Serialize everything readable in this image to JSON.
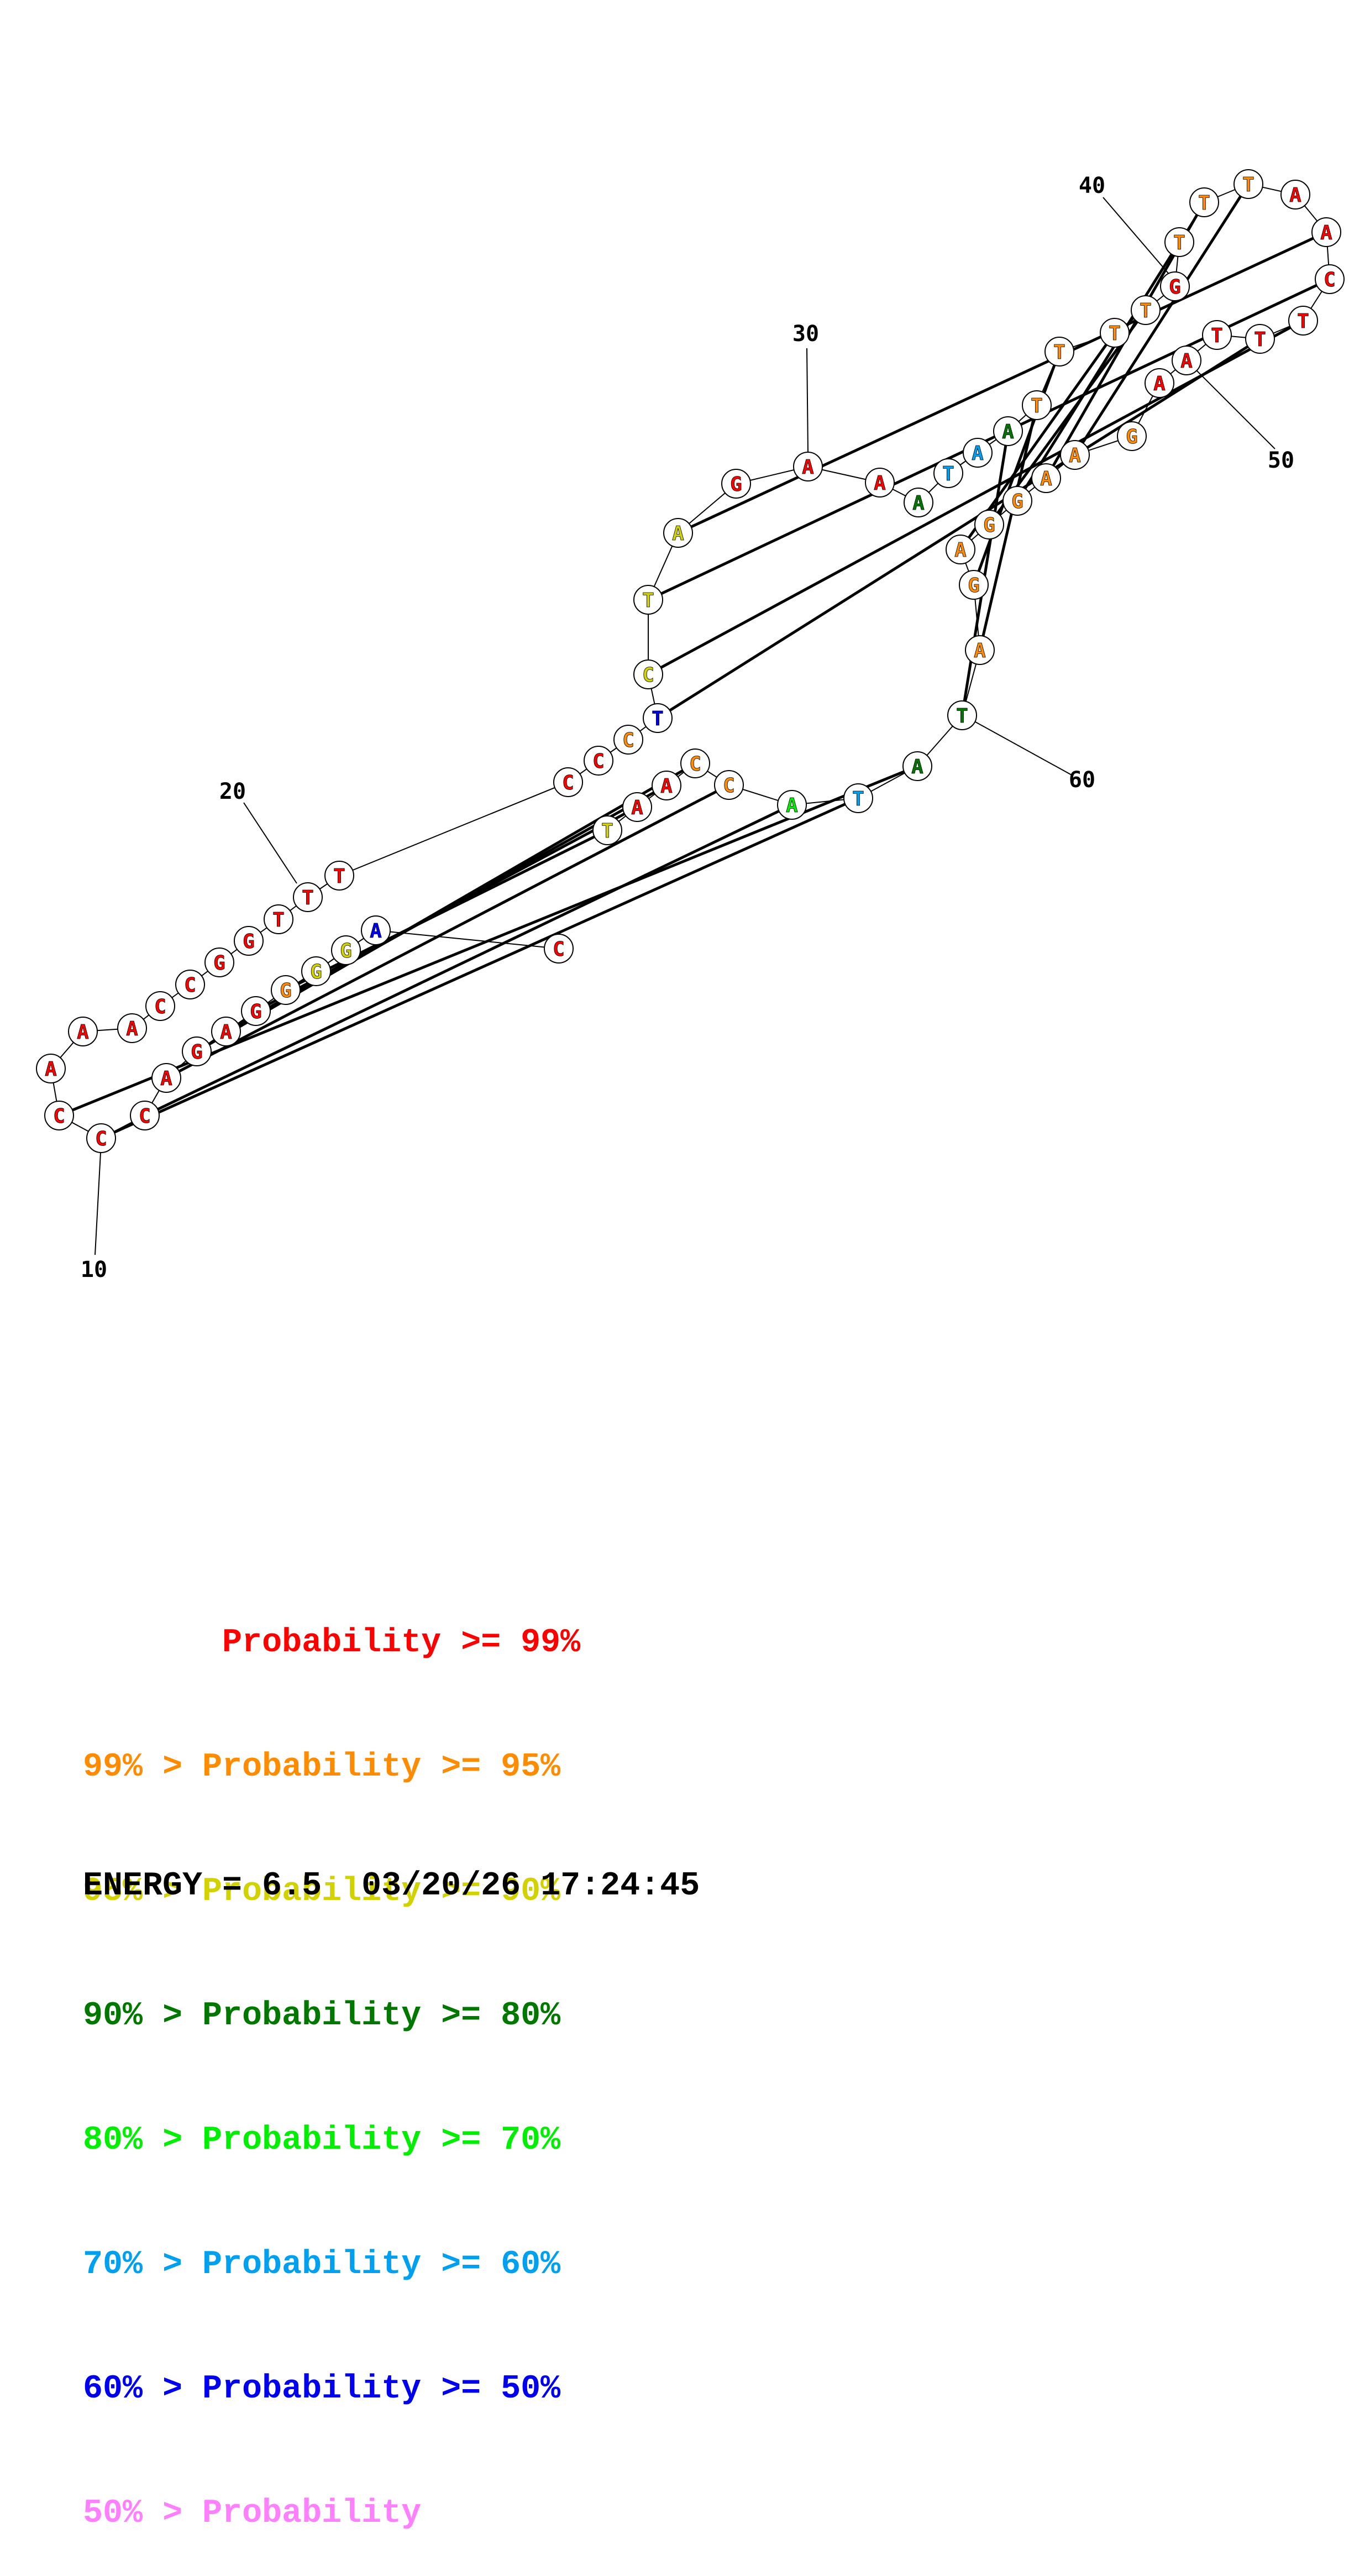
{
  "colors": {
    "red": "#ff0000",
    "orange": "#ff8c00",
    "yellow": "#d2d200",
    "dgreen": "#007800",
    "lgreen": "#00ee00",
    "cyan": "#00a0f0",
    "blue": "#0000f0",
    "pink": "#ff80ff"
  },
  "nucleotides": [
    {
      "base": "C",
      "c": "red"
    },
    {
      "base": "A",
      "c": "blue"
    },
    {
      "base": "G",
      "c": "yellow"
    },
    {
      "base": "G",
      "c": "yellow"
    },
    {
      "base": "G",
      "c": "orange"
    },
    {
      "base": "G",
      "c": "red"
    },
    {
      "base": "A",
      "c": "red"
    },
    {
      "base": "G",
      "c": "red"
    },
    {
      "base": "A",
      "c": "red"
    },
    {
      "base": "C",
      "c": "red"
    },
    {
      "base": "C",
      "c": "red"
    },
    {
      "base": "C",
      "c": "red"
    },
    {
      "base": "A",
      "c": "red"
    },
    {
      "base": "A",
      "c": "red"
    },
    {
      "base": "A",
      "c": "red"
    },
    {
      "base": "C",
      "c": "red"
    },
    {
      "base": "C",
      "c": "red"
    },
    {
      "base": "G",
      "c": "red"
    },
    {
      "base": "G",
      "c": "red"
    },
    {
      "base": "T",
      "c": "red"
    },
    {
      "base": "T",
      "c": "red"
    },
    {
      "base": "T",
      "c": "red"
    },
    {
      "base": "C",
      "c": "red"
    },
    {
      "base": "C",
      "c": "red"
    },
    {
      "base": "C",
      "c": "orange"
    },
    {
      "base": "T",
      "c": "blue"
    },
    {
      "base": "C",
      "c": "yellow"
    },
    {
      "base": "T",
      "c": "yellow"
    },
    {
      "base": "A",
      "c": "yellow"
    },
    {
      "base": "G",
      "c": "red"
    },
    {
      "base": "A",
      "c": "red"
    },
    {
      "base": "A",
      "c": "red"
    },
    {
      "base": "A",
      "c": "dgreen"
    },
    {
      "base": "T",
      "c": "cyan"
    },
    {
      "base": "A",
      "c": "cyan"
    },
    {
      "base": "A",
      "c": "dgreen"
    },
    {
      "base": "T",
      "c": "orange"
    },
    {
      "base": "T",
      "c": "orange"
    },
    {
      "base": "T",
      "c": "orange"
    },
    {
      "base": "T",
      "c": "orange"
    },
    {
      "base": "G",
      "c": "red"
    },
    {
      "base": "T",
      "c": "orange"
    },
    {
      "base": "T",
      "c": "orange"
    },
    {
      "base": "T",
      "c": "orange"
    },
    {
      "base": "A",
      "c": "red"
    },
    {
      "base": "A",
      "c": "red"
    },
    {
      "base": "C",
      "c": "red"
    },
    {
      "base": "T",
      "c": "red"
    },
    {
      "base": "T",
      "c": "red"
    },
    {
      "base": "T",
      "c": "red"
    },
    {
      "base": "A",
      "c": "red"
    },
    {
      "base": "A",
      "c": "red"
    },
    {
      "base": "G",
      "c": "orange"
    },
    {
      "base": "A",
      "c": "orange"
    },
    {
      "base": "A",
      "c": "orange"
    },
    {
      "base": "G",
      "c": "orange"
    },
    {
      "base": "G",
      "c": "orange"
    },
    {
      "base": "A",
      "c": "orange"
    },
    {
      "base": "G",
      "c": "orange"
    },
    {
      "base": "A",
      "c": "orange"
    },
    {
      "base": "T",
      "c": "dgreen"
    },
    {
      "base": "A",
      "c": "dgreen"
    },
    {
      "base": "T",
      "c": "cyan"
    },
    {
      "base": "A",
      "c": "lgreen"
    },
    {
      "base": "C",
      "c": "orange"
    },
    {
      "base": "C",
      "c": "orange"
    },
    {
      "base": "A",
      "c": "red"
    },
    {
      "base": "A",
      "c": "red"
    },
    {
      "base": "T",
      "c": "yellow"
    },
    {
      "base": "G",
      "c": "yellow"
    },
    {
      "base": "G",
      "c": "yellow"
    },
    {
      "base": "A",
      "c": "blue"
    }
  ],
  "position_labels": [
    {
      "text": "10"
    },
    {
      "text": "20"
    },
    {
      "text": "30"
    },
    {
      "text": "40"
    },
    {
      "text": "50"
    },
    {
      "text": "60"
    }
  ],
  "legend": [
    {
      "text": "       Probability >= 99%",
      "c": "red"
    },
    {
      "text": "99% > Probability >= 95%",
      "c": "orange"
    },
    {
      "text": "95% > Probability >= 90%",
      "c": "yellow"
    },
    {
      "text": "90% > Probability >= 80%",
      "c": "dgreen"
    },
    {
      "text": "80% > Probability >= 70%",
      "c": "lgreen"
    },
    {
      "text": "70% > Probability >= 60%",
      "c": "cyan"
    },
    {
      "text": "60% > Probability >= 50%",
      "c": "blue"
    },
    {
      "text": "50% > Probability",
      "c": "pink"
    }
  ],
  "footer": {
    "energy": "ENERGY = 6.5",
    "timestamp": "03/20/26 17:24:45"
  }
}
